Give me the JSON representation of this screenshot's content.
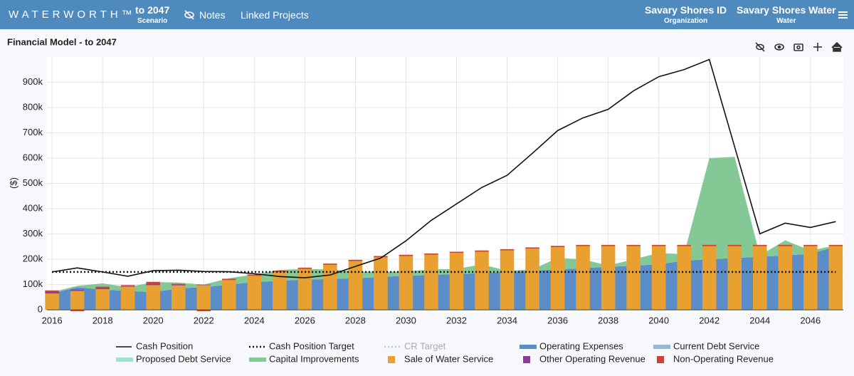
{
  "header": {
    "logo": "WATERWORTH™",
    "scenario": "to 2047",
    "scenario_label": "Scenario",
    "notes": "Notes",
    "linked": "Linked Projects",
    "org": "Savary Shores ID",
    "org_label": "Organization",
    "utility": "Savary Shores Water",
    "utility_label": "Water"
  },
  "chart_data": {
    "type": "combo",
    "title": "Financial Model - to 2047",
    "y_label": "($)",
    "x": [
      2016,
      2017,
      2018,
      2019,
      2020,
      2021,
      2022,
      2023,
      2024,
      2025,
      2026,
      2027,
      2028,
      2029,
      2030,
      2031,
      2032,
      2033,
      2034,
      2035,
      2036,
      2037,
      2038,
      2039,
      2040,
      2041,
      2042,
      2043,
      2044,
      2045,
      2046,
      2047
    ],
    "xlim": [
      2015.8,
      2047.3
    ],
    "xticks": [
      2016,
      2018,
      2020,
      2022,
      2024,
      2026,
      2028,
      2030,
      2032,
      2034,
      2036,
      2038,
      2040,
      2042,
      2044,
      2046
    ],
    "ylim": [
      -8000,
      1000000
    ],
    "yticks": [
      0,
      {
        "value": 100000,
        "label": "100k"
      },
      {
        "value": 200000,
        "label": "200k"
      },
      {
        "value": 300000,
        "label": "300k"
      },
      {
        "value": 400000,
        "label": "400k"
      },
      {
        "value": 500000,
        "label": "500k"
      },
      {
        "value": 600000,
        "label": "600k"
      },
      {
        "value": 700000,
        "label": "700k"
      },
      {
        "value": 800000,
        "label": "800k"
      },
      {
        "value": 900000,
        "label": "900k"
      }
    ],
    "grid": true,
    "legend": "bottom",
    "series": [
      {
        "name": "Cash Position",
        "color": "#111111",
        "kind": "line",
        "values": [
          150000,
          166000,
          150000,
          133000,
          155000,
          157000,
          152000,
          151000,
          143000,
          132000,
          127000,
          138000,
          172000,
          205000,
          273000,
          354000,
          419000,
          484000,
          532000,
          619000,
          709000,
          759000,
          793000,
          866000,
          922000,
          950000,
          990000,
          645000,
          301000,
          343000,
          326000,
          349000
        ]
      },
      {
        "name": "Cash Position Target",
        "color": "#111111",
        "kind": "dotted",
        "values": [
          150000,
          150000,
          150000,
          150000,
          150000,
          150000,
          150000,
          150000,
          150000,
          150000,
          150000,
          150000,
          150000,
          150000,
          150000,
          150000,
          150000,
          150000,
          150000,
          150000,
          150000,
          150000,
          150000,
          150000,
          150000,
          150000,
          150000,
          150000,
          150000,
          150000,
          150000,
          150000
        ]
      },
      {
        "name": "CR Target",
        "color": "#7dbf8e",
        "kind": "dotted",
        "visible": false
      },
      {
        "name": "Operating Expenses",
        "color": "#5b8ec8",
        "kind": "area",
        "values": [
          65000,
          90000,
          80000,
          75000,
          70000,
          85000,
          90000,
          100000,
          110000,
          115000,
          120000,
          122000,
          125000,
          130000,
          135000,
          138000,
          142000,
          145000,
          150000,
          155000,
          160000,
          165000,
          170000,
          175000,
          180000,
          195000,
          200000,
          205000,
          210000,
          215000,
          222000,
          250000
        ]
      },
      {
        "name": "Current Debt Service",
        "color": "#93b8da",
        "kind": "area",
        "values": [
          0,
          0,
          0,
          0,
          0,
          0,
          0,
          0,
          0,
          0,
          0,
          0,
          0,
          0,
          0,
          0,
          0,
          0,
          0,
          0,
          0,
          0,
          0,
          0,
          0,
          0,
          0,
          0,
          0,
          0,
          0,
          0
        ]
      },
      {
        "name": "Proposed Debt Service",
        "color": "#9fe0dc",
        "kind": "area",
        "values": [
          0,
          0,
          0,
          0,
          0,
          0,
          0,
          0,
          0,
          0,
          0,
          0,
          0,
          0,
          0,
          0,
          0,
          0,
          0,
          0,
          0,
          0,
          0,
          0,
          0,
          0,
          0,
          0,
          0,
          0,
          0,
          0
        ]
      },
      {
        "name": "Capital Improvements",
        "color": "#84c896",
        "kind": "area",
        "values": [
          5000,
          5000,
          25000,
          15000,
          40000,
          23000,
          10000,
          25000,
          30000,
          43000,
          42000,
          38000,
          27000,
          20000,
          17000,
          22000,
          20000,
          35000,
          5000,
          5000,
          45000,
          35000,
          5000,
          25000,
          45000,
          25000,
          400000,
          400000,
          5000,
          60000,
          13000,
          5000
        ]
      },
      {
        "name": "Sale of Water Service",
        "color": "#e8a030",
        "kind": "bar",
        "values": [
          65000,
          75000,
          82000,
          92000,
          98000,
          97000,
          98000,
          118000,
          135000,
          150000,
          162000,
          178000,
          193000,
          208000,
          213000,
          218000,
          225000,
          230000,
          235000,
          242000,
          248000,
          252000,
          252000,
          252000,
          252000,
          252000,
          252000,
          252000,
          252000,
          252000,
          252000,
          252000
        ]
      },
      {
        "name": "Other Operating Revenue",
        "color": "#8e3a9a",
        "kind": "bar",
        "values": [
          7000,
          5000,
          5000,
          3000,
          5000,
          3000,
          2000,
          0,
          0,
          0,
          0,
          0,
          0,
          0,
          0,
          0,
          0,
          0,
          0,
          0,
          0,
          0,
          0,
          0,
          0,
          0,
          0,
          0,
          0,
          0,
          0,
          0
        ]
      },
      {
        "name": "Non-Operating Revenue",
        "color": "#cc4433",
        "kind": "bar",
        "values": [
          5000,
          -5000,
          5000,
          3000,
          8000,
          3000,
          -5000,
          5000,
          5000,
          5000,
          5000,
          5000,
          5000,
          5000,
          5000,
          5000,
          5000,
          5000,
          5000,
          5000,
          5000,
          5000,
          5000,
          5000,
          5000,
          5000,
          5000,
          5000,
          5000,
          5000,
          5000,
          5000
        ]
      }
    ]
  }
}
